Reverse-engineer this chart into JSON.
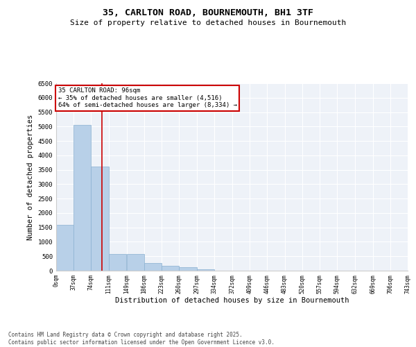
{
  "title": "35, CARLTON ROAD, BOURNEMOUTH, BH1 3TF",
  "subtitle": "Size of property relative to detached houses in Bournemouth",
  "xlabel": "Distribution of detached houses by size in Bournemouth",
  "ylabel": "Number of detached properties",
  "bar_color": "#b8d0e8",
  "bar_edge_color": "#8ab0d0",
  "background_color": "#eef2f8",
  "grid_color": "#ffffff",
  "vline_x": 96,
  "vline_color": "#cc0000",
  "annotation_text": "35 CARLTON ROAD: 96sqm\n← 35% of detached houses are smaller (4,516)\n64% of semi-detached houses are larger (8,334) →",
  "annotation_box_color": "#ffffff",
  "annotation_box_edge": "#cc0000",
  "footer": "Contains HM Land Registry data © Crown copyright and database right 2025.\nContains public sector information licensed under the Open Government Licence v3.0.",
  "bin_edges": [
    0,
    37,
    74,
    111,
    149,
    186,
    223,
    260,
    297,
    334,
    372,
    409,
    446,
    483,
    520,
    557,
    594,
    632,
    669,
    706,
    743
  ],
  "bin_labels": [
    "0sqm",
    "37sqm",
    "74sqm",
    "111sqm",
    "149sqm",
    "186sqm",
    "223sqm",
    "260sqm",
    "297sqm",
    "334sqm",
    "372sqm",
    "409sqm",
    "446sqm",
    "483sqm",
    "520sqm",
    "557sqm",
    "594sqm",
    "632sqm",
    "669sqm",
    "706sqm",
    "743sqm"
  ],
  "bar_heights": [
    1600,
    5050,
    3600,
    580,
    580,
    270,
    170,
    130,
    60,
    0,
    0,
    0,
    0,
    0,
    0,
    0,
    0,
    0,
    0,
    0
  ],
  "ylim": [
    0,
    6500
  ],
  "yticks": [
    0,
    500,
    1000,
    1500,
    2000,
    2500,
    3000,
    3500,
    4000,
    4500,
    5000,
    5500,
    6000,
    6500
  ]
}
